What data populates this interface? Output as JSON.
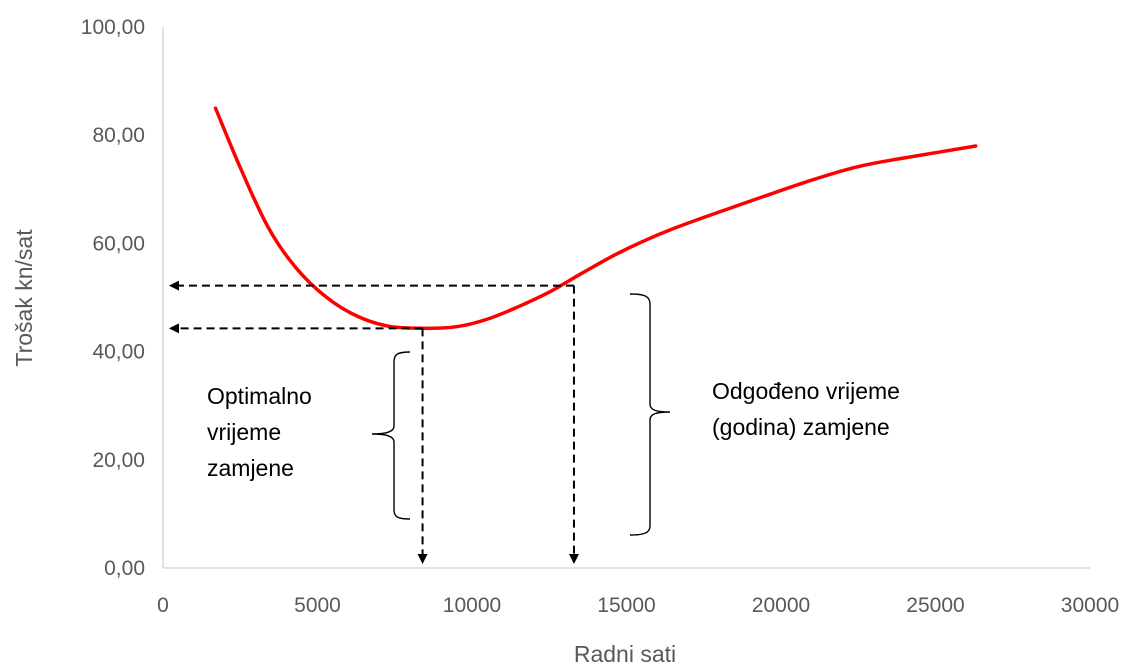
{
  "chart_data": {
    "type": "line",
    "title": "",
    "xlabel": "Radni sati",
    "ylabel": "Trošak kn/sat",
    "xlim": [
      0,
      30000
    ],
    "ylim": [
      0,
      100
    ],
    "x_ticks": [
      "0",
      "5000",
      "10000",
      "15000",
      "20000",
      "25000",
      "30000"
    ],
    "y_ticks": [
      "0,00",
      "20,00",
      "40,00",
      "60,00",
      "80,00",
      "100,00"
    ],
    "grid": false,
    "legend": "none",
    "series": [
      {
        "color": "#ff0000",
        "x": [
          1700,
          2500,
          3400,
          4300,
          5300,
          6300,
          7300,
          8400,
          9500,
          10500,
          11500,
          12500,
          13500,
          14500,
          15500,
          16500,
          18000,
          19500,
          21000,
          22500,
          24000,
          26300
        ],
        "y": [
          85,
          74,
          63,
          55.5,
          50,
          46.5,
          44.7,
          44.3,
          44.6,
          46,
          48.3,
          51,
          54.3,
          57.5,
          60.3,
          62.7,
          65.8,
          68.8,
          71.7,
          74.2,
          75.8,
          78
        ]
      }
    ],
    "annotations": [
      {
        "text_lines": [
          "Optimalno",
          "vrijeme",
          "zamjene"
        ],
        "x": 8400,
        "y": 44.3
      },
      {
        "text_lines": [
          "Odgođeno vrijeme",
          "(godina) zamjene"
        ],
        "x": 13300,
        "y": 52.2
      }
    ]
  }
}
